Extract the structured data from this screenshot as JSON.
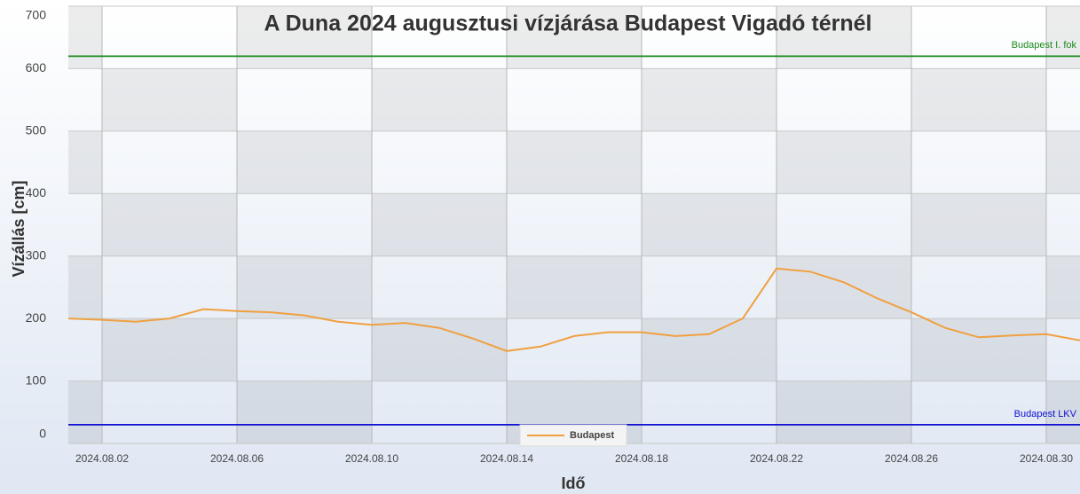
{
  "chart_data": {
    "type": "line",
    "title": "A Duna 2024 augusztusi vízjárása Budapest Vigadó térnél",
    "x_label": "Idő",
    "y_label": "Vízállás [cm]",
    "x": [
      "2024.08.01",
      "2024.08.02",
      "2024.08.03",
      "2024.08.04",
      "2024.08.05",
      "2024.08.06",
      "2024.08.07",
      "2024.08.08",
      "2024.08.09",
      "2024.08.10",
      "2024.08.11",
      "2024.08.12",
      "2024.08.13",
      "2024.08.14",
      "2024.08.15",
      "2024.08.16",
      "2024.08.17",
      "2024.08.18",
      "2024.08.19",
      "2024.08.20",
      "2024.08.21",
      "2024.08.22",
      "2024.08.23",
      "2024.08.24",
      "2024.08.25",
      "2024.08.26",
      "2024.08.27",
      "2024.08.28",
      "2024.08.29",
      "2024.08.30",
      "2024.08.31"
    ],
    "series": [
      {
        "name": "Budapest",
        "color": "#f0a040",
        "values": [
          200,
          198,
          195,
          200,
          215,
          212,
          210,
          205,
          195,
          190,
          193,
          185,
          168,
          148,
          155,
          172,
          178,
          178,
          172,
          175,
          200,
          280,
          275,
          258,
          232,
          210,
          185,
          170,
          173,
          175,
          165
        ]
      }
    ],
    "reference_lines": [
      {
        "label": "Budapest I. fok",
        "value": 620,
        "color": "#1a8a1a"
      },
      {
        "label": "Budapest LKV",
        "value": 30,
        "color": "#1010d0"
      }
    ],
    "xlim": [
      "2024.08.01",
      "2024.08.31"
    ],
    "xticks": [
      "2024.08.02",
      "2024.08.06",
      "2024.08.10",
      "2024.08.14",
      "2024.08.18",
      "2024.08.22",
      "2024.08.26",
      "2024.08.30"
    ],
    "ylim": [
      0,
      700
    ],
    "yticks": [
      0,
      100,
      200,
      300,
      400,
      500,
      600,
      700
    ],
    "grid": true,
    "legend": "bottom"
  }
}
